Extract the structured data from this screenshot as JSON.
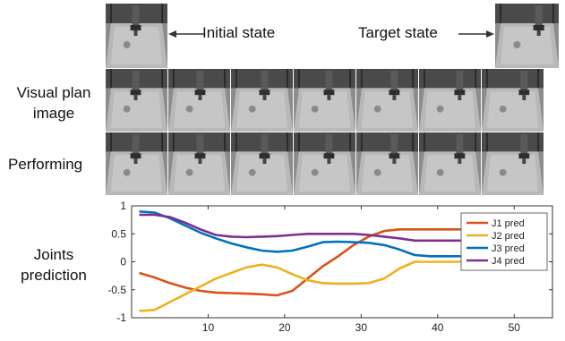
{
  "labels": {
    "initial_state": "Initial state",
    "target_state": "Target state",
    "visual_plan_line1": "Visual plan",
    "visual_plan_line2": "image",
    "performing": "Performing",
    "joints_line1": "Joints",
    "joints_line2": "prediction"
  },
  "chart_data": {
    "type": "line",
    "title": "",
    "xlabel": "",
    "ylabel": "",
    "xlim": [
      0,
      55
    ],
    "ylim": [
      -1,
      1
    ],
    "xticks": [
      "10",
      "20",
      "30",
      "40",
      "50"
    ],
    "yticks": [
      "1",
      "0.5",
      "0",
      "-0.5",
      "-1"
    ],
    "legend_position": "right",
    "series": [
      {
        "name": "J1 pred",
        "color": "#d95319",
        "x": [
          1,
          3,
          5,
          7,
          9,
          11,
          13,
          15,
          17,
          19,
          21,
          23,
          25,
          27,
          29,
          31,
          33,
          35,
          37,
          39,
          41,
          43
        ],
        "y": [
          -0.2,
          -0.28,
          -0.38,
          -0.46,
          -0.52,
          -0.55,
          -0.56,
          -0.57,
          -0.58,
          -0.6,
          -0.52,
          -0.3,
          -0.08,
          0.1,
          0.3,
          0.45,
          0.55,
          0.58,
          0.58,
          0.58,
          0.58,
          0.58
        ]
      },
      {
        "name": "J2 pred",
        "color": "#edb120",
        "x": [
          1,
          3,
          5,
          7,
          9,
          11,
          13,
          15,
          17,
          19,
          21,
          23,
          25,
          27,
          29,
          31,
          33,
          35,
          37,
          39,
          41,
          43
        ],
        "y": [
          -0.88,
          -0.86,
          -0.72,
          -0.58,
          -0.44,
          -0.3,
          -0.2,
          -0.1,
          -0.05,
          -0.1,
          -0.22,
          -0.33,
          -0.38,
          -0.39,
          -0.39,
          -0.38,
          -0.3,
          -0.12,
          0.0,
          0.0,
          0.0,
          0.0
        ]
      },
      {
        "name": "J3 pred",
        "color": "#0072bd",
        "x": [
          1,
          3,
          5,
          7,
          9,
          11,
          13,
          15,
          17,
          19,
          21,
          23,
          25,
          27,
          29,
          31,
          33,
          35,
          37,
          39,
          41,
          43
        ],
        "y": [
          0.9,
          0.88,
          0.78,
          0.65,
          0.52,
          0.42,
          0.33,
          0.26,
          0.2,
          0.18,
          0.2,
          0.27,
          0.35,
          0.36,
          0.35,
          0.34,
          0.3,
          0.22,
          0.12,
          0.1,
          0.1,
          0.1
        ]
      },
      {
        "name": "J4 pred",
        "color": "#7e2f8e",
        "x": [
          1,
          3,
          5,
          7,
          9,
          11,
          13,
          15,
          17,
          19,
          21,
          23,
          25,
          27,
          29,
          31,
          33,
          35,
          37,
          39,
          41,
          43
        ],
        "y": [
          0.84,
          0.84,
          0.8,
          0.7,
          0.58,
          0.48,
          0.45,
          0.44,
          0.45,
          0.46,
          0.48,
          0.5,
          0.5,
          0.5,
          0.5,
          0.48,
          0.45,
          0.42,
          0.38,
          0.38,
          0.38,
          0.38
        ]
      }
    ]
  }
}
